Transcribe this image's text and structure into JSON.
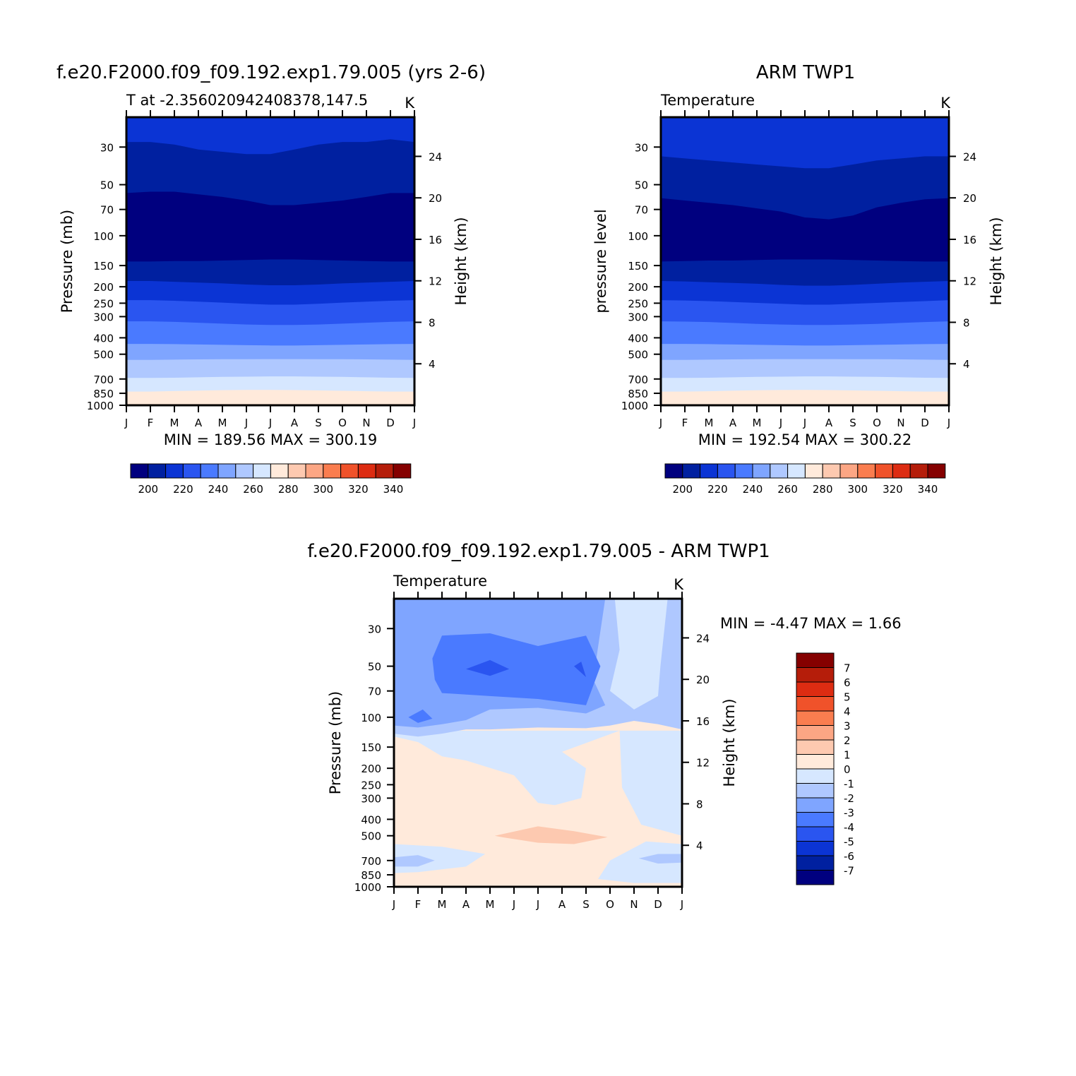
{
  "colors": {
    "temperature_levels": [
      "#00007f",
      "#0020a0",
      "#0b34d4",
      "#2a55f0",
      "#4a7aff",
      "#7fa5ff",
      "#afc8ff",
      "#d6e7ff",
      "#ffeadb",
      "#fdc9b0",
      "#fca684",
      "#fa7d4f",
      "#f0522a",
      "#dd2c12",
      "#b51d0a",
      "#850000"
    ],
    "difference_levels": [
      "#850000",
      "#b51d0a",
      "#dd2c12",
      "#f0522a",
      "#fa7d4f",
      "#fca684",
      "#fdc9b0",
      "#ffeadb",
      "#d6e7ff",
      "#afc8ff",
      "#7fa5ff",
      "#4a7aff",
      "#2a55f0",
      "#0b34d4",
      "#0020a0",
      "#00007f"
    ]
  },
  "panels": {
    "model": {
      "title": "f.e20.F2000.f09_f09.192.exp1.79.005 (yrs 2-6)",
      "subtitle": "T at -2.356020942408378,147.5",
      "units": "K",
      "left_axis_label": "Pressure (mb)",
      "right_axis_label": "Height (km)",
      "stats": "MIN = 189.56 MAX = 300.19",
      "colorbar_labels": [
        "200",
        "220",
        "240",
        "260",
        "280",
        "300",
        "320",
        "340"
      ]
    },
    "obs": {
      "title": "ARM TWP1",
      "subtitle": "Temperature",
      "units": "K",
      "left_axis_label": "pressure level",
      "right_axis_label": "Height (km)",
      "stats": "MIN = 192.54 MAX = 300.22",
      "colorbar_labels": [
        "200",
        "220",
        "240",
        "260",
        "280",
        "300",
        "320",
        "340"
      ]
    },
    "diff": {
      "title": "f.e20.F2000.f09_f09.192.exp1.79.005 - ARM TWP1",
      "subtitle": "Temperature",
      "units": "K",
      "left_axis_label": "Pressure (mb)",
      "right_axis_label": "Height (km)",
      "stats": "MIN = -4.47 MAX = 1.66",
      "colorbar_labels": [
        "7",
        "6",
        "5",
        "4",
        "3",
        "2",
        "1",
        "0",
        "-1",
        "-2",
        "-3",
        "-4",
        "-5",
        "-6",
        "-7"
      ]
    }
  },
  "chart_data": [
    {
      "type": "heatmap",
      "title": "f.e20.F2000.f09_f09.192.exp1.79.005 (yrs 2-6)",
      "subtitle": "T at -2.356020942408378,147.5",
      "units": "K",
      "x": [
        "J",
        "F",
        "M",
        "A",
        "M",
        "J",
        "J",
        "A",
        "S",
        "O",
        "N",
        "D",
        "J"
      ],
      "y_ticks": [
        "30",
        "50",
        "70",
        "100",
        "150",
        "200",
        "250",
        "300",
        "400",
        "500",
        "700",
        "850",
        "1000"
      ],
      "y_right_ticks": [
        "24",
        "20",
        "16",
        "12",
        "8",
        "4"
      ],
      "ylabel": "Pressure (mb)",
      "ylabel_right": "Height (km)",
      "ylim": [
        1000,
        20
      ],
      "y_scale": "log",
      "contour_levels": [
        195,
        200,
        210,
        220,
        230,
        240,
        250,
        260,
        270,
        280,
        290,
        300,
        310,
        320,
        330,
        340
      ],
      "boundaries": [
        {
          "level": 200,
          "pressure": [
            28,
            28,
            29,
            31,
            32,
            33,
            33,
            31,
            29,
            28,
            28,
            27,
            28
          ]
        },
        {
          "level": 195,
          "pressure": [
            56,
            55,
            55,
            57,
            59,
            62,
            66,
            66,
            64,
            62,
            59,
            56,
            56
          ]
        },
        {
          "level": 200,
          "pressure": [
            142,
            142,
            141,
            141,
            140,
            139,
            138,
            138,
            139,
            140,
            141,
            142,
            142
          ]
        },
        {
          "level": 210,
          "pressure": [
            185,
            185,
            187,
            189,
            191,
            194,
            196,
            196,
            194,
            191,
            189,
            187,
            185
          ]
        },
        {
          "level": 220,
          "pressure": [
            240,
            240,
            242,
            245,
            248,
            252,
            255,
            255,
            252,
            248,
            245,
            242,
            240
          ]
        },
        {
          "level": 230,
          "pressure": [
            320,
            320,
            322,
            326,
            330,
            334,
            336,
            336,
            334,
            330,
            326,
            322,
            320
          ]
        },
        {
          "level": 240,
          "pressure": [
            435,
            435,
            436,
            438,
            440,
            442,
            444,
            444,
            442,
            440,
            438,
            436,
            435
          ]
        },
        {
          "level": 250,
          "pressure": [
            540,
            540,
            538,
            536,
            535,
            535,
            534,
            534,
            535,
            535,
            536,
            538,
            540
          ]
        },
        {
          "level": 270,
          "pressure": [
            690,
            690,
            688,
            684,
            680,
            678,
            676,
            676,
            678,
            680,
            684,
            688,
            690
          ]
        },
        {
          "level": 280,
          "pressure": [
            830,
            830,
            825,
            820,
            815,
            812,
            812,
            814,
            818,
            822,
            826,
            830,
            830
          ]
        },
        {
          "level": 290,
          "pressure": [
            985,
            985,
            985,
            985,
            985,
            985,
            985,
            985,
            985,
            985,
            985,
            985,
            985
          ]
        }
      ],
      "min": 189.56,
      "max": 300.19
    },
    {
      "type": "heatmap",
      "title": "ARM TWP1",
      "subtitle": "Temperature",
      "units": "K",
      "x": [
        "J",
        "F",
        "M",
        "A",
        "M",
        "J",
        "J",
        "A",
        "S",
        "O",
        "N",
        "D",
        "J"
      ],
      "y_ticks": [
        "30",
        "50",
        "70",
        "100",
        "150",
        "200",
        "250",
        "300",
        "400",
        "500",
        "700",
        "850",
        "1000"
      ],
      "y_right_ticks": [
        "24",
        "20",
        "16",
        "12",
        "8",
        "4"
      ],
      "ylabel": "pressure level",
      "ylabel_right": "Height (km)",
      "ylim": [
        1000,
        20
      ],
      "y_scale": "log",
      "contour_levels": [
        195,
        200,
        210,
        220,
        230,
        240,
        250,
        260,
        270,
        280,
        290,
        300,
        310,
        320,
        330,
        340
      ],
      "boundaries": [
        {
          "level": 200,
          "pressure": [
            34,
            35,
            36,
            37,
            38,
            39,
            40,
            40,
            38,
            36,
            35,
            34,
            34
          ]
        },
        {
          "level": 195,
          "pressure": [
            60,
            62,
            64,
            66,
            69,
            72,
            78,
            80,
            76,
            68,
            64,
            61,
            60
          ]
        },
        {
          "level": 200,
          "pressure": [
            142,
            141,
            140,
            140,
            139,
            138,
            138,
            138,
            139,
            140,
            141,
            142,
            142
          ]
        },
        {
          "level": 210,
          "pressure": [
            185,
            186,
            188,
            190,
            192,
            195,
            197,
            197,
            195,
            192,
            189,
            187,
            185
          ]
        },
        {
          "level": 220,
          "pressure": [
            240,
            241,
            243,
            246,
            249,
            252,
            255,
            255,
            252,
            249,
            246,
            243,
            240
          ]
        },
        {
          "level": 230,
          "pressure": [
            320,
            321,
            323,
            327,
            331,
            334,
            336,
            336,
            334,
            331,
            327,
            323,
            320
          ]
        },
        {
          "level": 240,
          "pressure": [
            435,
            435,
            436,
            438,
            440,
            442,
            444,
            444,
            442,
            440,
            438,
            436,
            435
          ]
        },
        {
          "level": 250,
          "pressure": [
            540,
            540,
            538,
            536,
            535,
            534,
            534,
            534,
            535,
            535,
            536,
            538,
            540
          ]
        },
        {
          "level": 270,
          "pressure": [
            690,
            690,
            688,
            684,
            680,
            678,
            676,
            676,
            678,
            680,
            684,
            688,
            690
          ]
        },
        {
          "level": 280,
          "pressure": [
            830,
            830,
            826,
            821,
            816,
            813,
            812,
            814,
            818,
            822,
            826,
            830,
            830
          ]
        }
      ],
      "min": 192.54,
      "max": 300.22
    },
    {
      "type": "heatmap",
      "title": "f.e20.F2000.f09_f09.192.exp1.79.005 - ARM TWP1",
      "subtitle": "Temperature",
      "units": "K",
      "x": [
        "J",
        "F",
        "M",
        "A",
        "M",
        "J",
        "J",
        "A",
        "S",
        "O",
        "N",
        "D",
        "J"
      ],
      "y_ticks": [
        "30",
        "50",
        "70",
        "100",
        "150",
        "200",
        "250",
        "300",
        "400",
        "500",
        "700",
        "850",
        "1000"
      ],
      "y_right_ticks": [
        "24",
        "20",
        "16",
        "12",
        "8",
        "4"
      ],
      "ylabel": "Pressure (mb)",
      "ylabel_right": "Height (km)",
      "ylim": [
        1000,
        20
      ],
      "y_scale": "log",
      "contour_levels": [
        -7,
        -6,
        -5,
        -4,
        -3,
        -2,
        -1,
        0,
        1,
        2,
        3,
        4,
        5,
        6,
        7
      ],
      "regions": [
        {
          "level": -2,
          "note": "broad negative band 20-120 mb"
        },
        {
          "level": -3,
          "note": "core negative band 35-90 mb, Mar-Sep"
        },
        {
          "level": -4,
          "note": "localised minima near 50 mb, May and Aug"
        },
        {
          "level": 0,
          "note": "weak positive 120-1000 mb"
        },
        {
          "level": 1,
          "note": "positive anomaly near 500 mb, Jun-Sep"
        }
      ],
      "min": -4.47,
      "max": 1.66
    }
  ]
}
